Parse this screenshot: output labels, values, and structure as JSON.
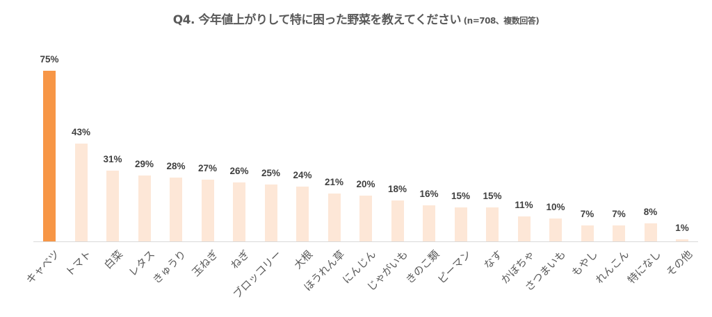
{
  "title": {
    "main": "Q4. 今年値上がりして特に困った野菜を教えてください",
    "sub": " (n=708、複数回答)"
  },
  "colors": {
    "highlight": "#f79646",
    "bar": "#fde7d7",
    "axis": "#d9d9d9",
    "label": "#404040"
  },
  "chart_data": {
    "type": "bar",
    "title": "Q4. 今年値上がりして特に困った野菜を教えてください (n=708、複数回答)",
    "xlabel": "",
    "ylabel": "",
    "categories": [
      "キャベツ",
      "トマト",
      "白菜",
      "レタス",
      "きゅうり",
      "玉ねぎ",
      "ねぎ",
      "ブロッコリー",
      "大根",
      "ほうれん草",
      "にんじん",
      "じゃがいも",
      "きのこ類",
      "ピーマン",
      "なす",
      "かぼちゃ",
      "さつまいも",
      "もやし",
      "れんこん",
      "特になし",
      "その他"
    ],
    "values": [
      75,
      43,
      31,
      29,
      28,
      27,
      26,
      25,
      24,
      21,
      20,
      18,
      16,
      15,
      15,
      11,
      10,
      7,
      7,
      8,
      1
    ],
    "labels": [
      "75%",
      "43%",
      "31%",
      "29%",
      "28%",
      "27%",
      "26%",
      "25%",
      "24%",
      "21%",
      "20%",
      "18%",
      "16%",
      "15%",
      "15%",
      "11%",
      "10%",
      "7%",
      "7%",
      "8%",
      "1%"
    ],
    "unit": "%",
    "highlight_index": 0,
    "ylim": [
      0,
      75
    ],
    "grid": false,
    "legend": false
  }
}
